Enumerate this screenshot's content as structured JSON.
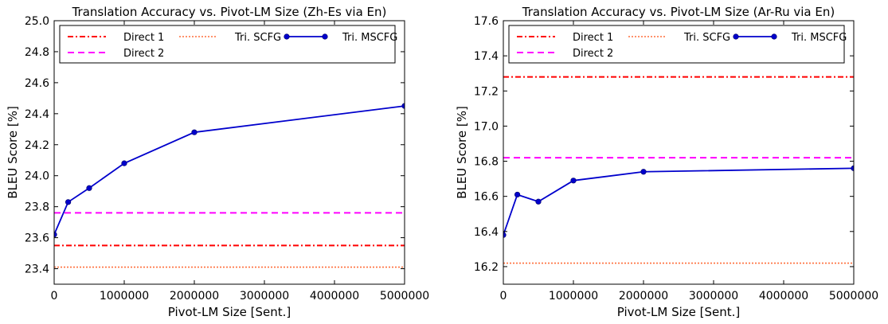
{
  "chart_data": [
    {
      "type": "line",
      "title": "Translation Accuracy vs. Pivot-LM Size (Zh-Es via En)",
      "xlabel": "Pivot-LM Size [Sent.]",
      "ylabel": "BLEU Score [%]",
      "xlim": [
        0,
        5000000
      ],
      "ylim": [
        23.3,
        25.0
      ],
      "xticks": [
        0,
        1000000,
        2000000,
        3000000,
        4000000,
        5000000
      ],
      "xtick_labels": [
        "0",
        "1000000",
        "2000000",
        "3000000",
        "4000000",
        "5000000"
      ],
      "yticks": [
        23.4,
        23.6,
        23.8,
        24.0,
        24.2,
        24.4,
        24.6,
        24.8,
        25.0
      ],
      "ytick_labels": [
        "23.4",
        "23.6",
        "23.8",
        "24.0",
        "24.2",
        "24.4",
        "24.6",
        "24.8",
        "25.0"
      ],
      "grid": false,
      "legend": "top",
      "series": [
        {
          "name": "Direct 1",
          "kind": "hline",
          "value": 23.55,
          "color": "#ff0000",
          "style": "dashdot"
        },
        {
          "name": "Direct 2",
          "kind": "hline",
          "value": 23.76,
          "color": "#ff00ff",
          "style": "dashed"
        },
        {
          "name": "Tri. SCFG",
          "kind": "hline",
          "value": 23.41,
          "color": "#ff6e3a",
          "style": "dotted"
        },
        {
          "name": "Tri. MSCFG",
          "kind": "line",
          "color": "#0000cc",
          "style": "solid-marker",
          "x": [
            0,
            200000,
            500000,
            1000000,
            2000000,
            5000000
          ],
          "y": [
            23.62,
            23.83,
            23.92,
            24.08,
            24.28,
            24.45
          ]
        }
      ]
    },
    {
      "type": "line",
      "title": "Translation Accuracy vs. Pivot-LM Size (Ar-Ru via En)",
      "xlabel": "Pivot-LM Size [Sent.]",
      "ylabel": "BLEU Score [%]",
      "xlim": [
        0,
        5000000
      ],
      "ylim": [
        16.1,
        17.6
      ],
      "xticks": [
        0,
        1000000,
        2000000,
        3000000,
        4000000,
        5000000
      ],
      "xtick_labels": [
        "0",
        "1000000",
        "2000000",
        "3000000",
        "4000000",
        "5000000"
      ],
      "yticks": [
        16.2,
        16.4,
        16.6,
        16.8,
        17.0,
        17.2,
        17.4,
        17.6
      ],
      "ytick_labels": [
        "16.2",
        "16.4",
        "16.6",
        "16.8",
        "17.0",
        "17.2",
        "17.4",
        "17.6"
      ],
      "grid": false,
      "legend": "top",
      "series": [
        {
          "name": "Direct 1",
          "kind": "hline",
          "value": 17.28,
          "color": "#ff0000",
          "style": "dashdot"
        },
        {
          "name": "Direct 2",
          "kind": "hline",
          "value": 16.82,
          "color": "#ff00ff",
          "style": "dashed"
        },
        {
          "name": "Tri. SCFG",
          "kind": "hline",
          "value": 16.22,
          "color": "#ff6e3a",
          "style": "dotted"
        },
        {
          "name": "Tri. MSCFG",
          "kind": "line",
          "color": "#0000cc",
          "style": "solid-marker",
          "x": [
            0,
            200000,
            500000,
            1000000,
            2000000,
            5000000
          ],
          "y": [
            16.38,
            16.61,
            16.57,
            16.69,
            16.74,
            16.76
          ]
        }
      ]
    }
  ]
}
